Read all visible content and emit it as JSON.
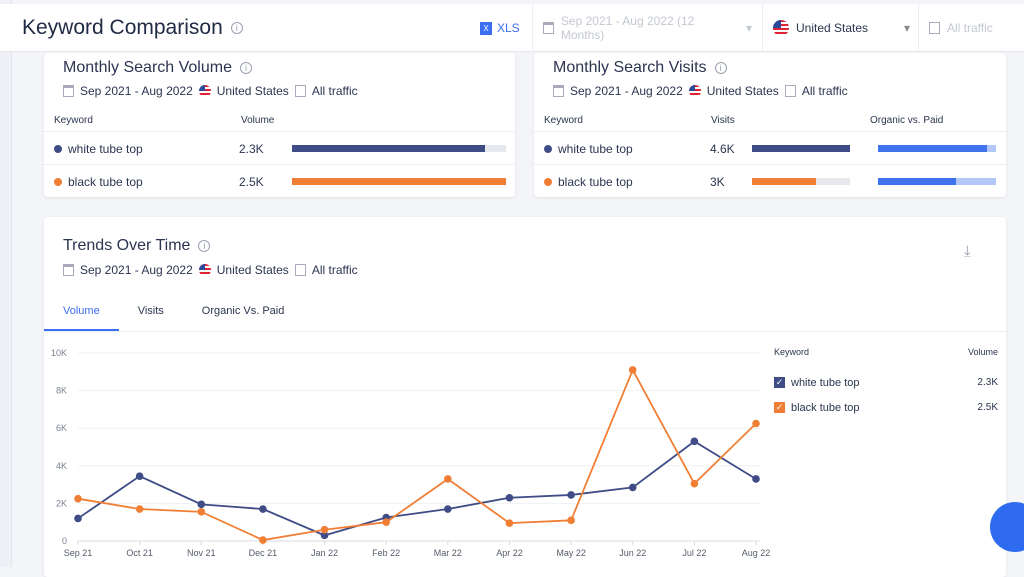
{
  "header": {
    "title": "Keyword Comparison",
    "xls": "XLS",
    "date_range": "Sep 2021 - Aug 2022 (12 Months)",
    "country": "United States",
    "traffic": "All traffic"
  },
  "volume_card": {
    "title": "Monthly Search Volume",
    "date": "Sep 2021 - Aug 2022",
    "country": "United States",
    "traffic": "All traffic",
    "columns": [
      "Keyword",
      "Volume"
    ],
    "rows": [
      {
        "keyword": "white tube top",
        "value": "2.3K",
        "fill": 0.9,
        "color": "#3f4c85"
      },
      {
        "keyword": "black tube top",
        "value": "2.5K",
        "fill": 1.0,
        "color": "#f07f35"
      }
    ]
  },
  "visits_card": {
    "title": "Monthly Search Visits",
    "date": "Sep 2021 - Aug 2022",
    "country": "United States",
    "traffic": "All traffic",
    "columns": [
      "Keyword",
      "Visits",
      "Organic vs. Paid"
    ],
    "rows": [
      {
        "keyword": "white tube top",
        "value": "4.6K",
        "fill": 1.0,
        "organic": 0.92,
        "color": "#3f4c85"
      },
      {
        "keyword": "black tube top",
        "value": "3K",
        "fill": 0.65,
        "organic": 0.66,
        "color": "#f07f35"
      }
    ]
  },
  "trends": {
    "title": "Trends Over Time",
    "date": "Sep 2021 - Aug 2022",
    "country": "United States",
    "traffic": "All traffic",
    "tabs": [
      "Volume",
      "Visits",
      "Organic Vs. Paid"
    ],
    "legend": {
      "keyword_header": "Keyword",
      "volume_header": "Volume",
      "items": [
        {
          "name": "white tube top",
          "value": "2.3K"
        },
        {
          "name": "black tube top",
          "value": "2.5K"
        }
      ]
    }
  },
  "chart_data": {
    "type": "line",
    "x": [
      "Sep 21",
      "Oct 21",
      "Nov 21",
      "Dec 21",
      "Jan 22",
      "Feb 22",
      "Mar 22",
      "Apr 22",
      "May 22",
      "Jun 22",
      "Jul 22",
      "Aug 22"
    ],
    "ylim": [
      0,
      10000
    ],
    "yticks": [
      "0",
      "2K",
      "4K",
      "6K",
      "8K",
      "10K"
    ],
    "grid": true,
    "legend": "right",
    "series": [
      {
        "name": "white tube top",
        "color": "#3f4c85",
        "values": [
          1200,
          3450,
          1950,
          1700,
          300,
          1250,
          1700,
          2300,
          2450,
          2850,
          5300,
          3300
        ]
      },
      {
        "name": "black tube top",
        "color": "#f07f35",
        "values": [
          2250,
          1700,
          1550,
          50,
          600,
          1000,
          3300,
          950,
          1100,
          9100,
          3050,
          6250
        ]
      }
    ]
  }
}
